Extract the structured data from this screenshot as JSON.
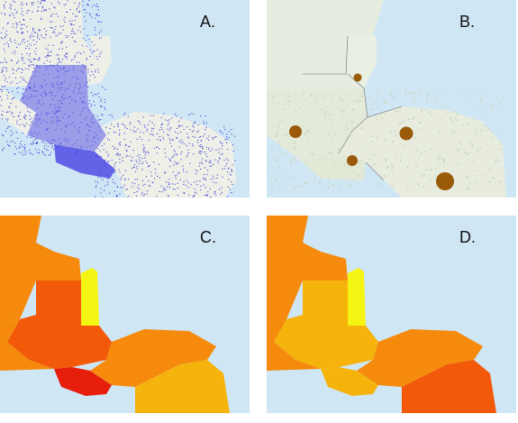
{
  "panels": {
    "a": {
      "label": "A."
    },
    "b": {
      "label": "B."
    },
    "c": {
      "label": "C."
    },
    "d": {
      "label": "D."
    }
  },
  "colors": {
    "water": "#cfe6f5",
    "land": "#eef0e8",
    "dots": "#3b3bd6",
    "dots_dense": "#5a5ae8",
    "circle": "#9a5a0a",
    "red": "#e81e0c",
    "red_orange": "#f25a0a",
    "orange": "#f58a0c",
    "amber": "#f5b30c",
    "yellow": "#f5f514"
  }
}
